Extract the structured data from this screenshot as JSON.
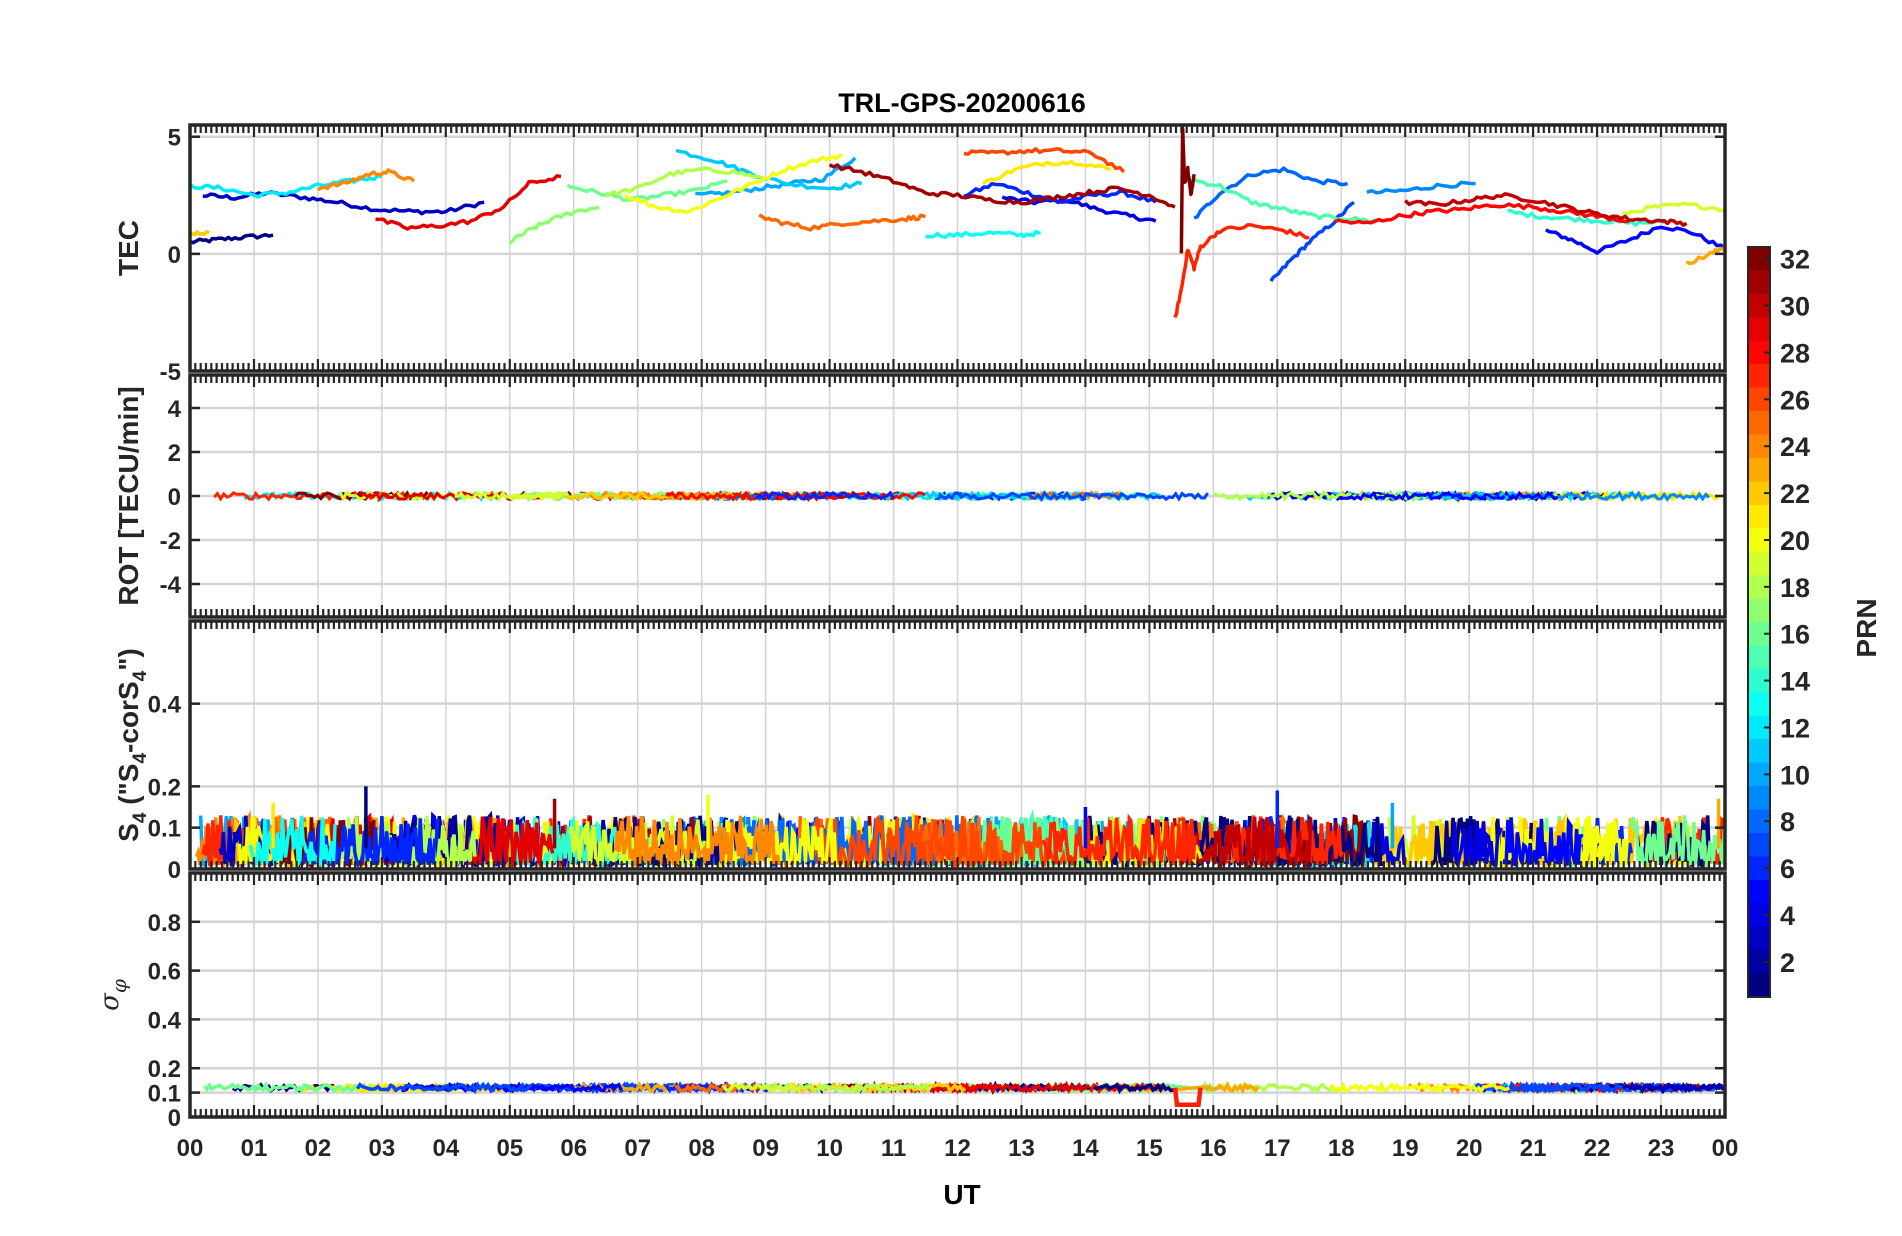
{
  "title": "TRL-GPS-20200616",
  "chart_data": [
    {
      "type": "line",
      "panel": "TEC",
      "ylabel": "TEC",
      "ylim": [
        -5,
        5.5
      ],
      "yticks": [
        "5",
        "0",
        "-5"
      ],
      "ytick_values": [
        5,
        0,
        -5
      ],
      "grid": true,
      "series": [
        {
          "prn": 1,
          "x": [
            0.0,
            0.4,
            0.8,
            1.3
          ],
          "y": [
            0.5,
            0.6,
            0.7,
            0.8
          ]
        },
        {
          "prn": 3,
          "x": [
            0.2,
            0.7,
            1.2,
            1.8,
            2.3,
            2.9,
            3.5,
            4.0,
            4.6
          ],
          "y": [
            2.5,
            2.4,
            2.6,
            2.4,
            2.2,
            1.9,
            1.8,
            1.8,
            2.2
          ]
        },
        {
          "prn": 4,
          "x": [
            12.7,
            13.2,
            13.7,
            14.2,
            14.7,
            15.1
          ],
          "y": [
            2.4,
            2.2,
            2.3,
            1.9,
            1.6,
            1.4
          ]
        },
        {
          "prn": 5,
          "x": [
            21.2,
            21.6,
            22.0,
            22.5,
            23.0,
            23.5,
            24.0
          ],
          "y": [
            1.0,
            0.6,
            0.1,
            0.6,
            1.2,
            0.9,
            0.2
          ]
        },
        {
          "prn": 6,
          "x": [
            12.1,
            12.6,
            13.1,
            13.6,
            14.1,
            14.6,
            15.1
          ],
          "y": [
            2.5,
            3.0,
            2.6,
            2.2,
            2.5,
            2.6,
            2.2
          ]
        },
        {
          "prn": 7,
          "x": [
            16.9,
            17.2,
            17.5,
            17.9,
            18.2
          ],
          "y": [
            -1.2,
            -0.3,
            0.5,
            1.4,
            2.2
          ]
        },
        {
          "prn": 8,
          "x": [
            15.7,
            16.1,
            16.6,
            17.1,
            17.6,
            18.1
          ],
          "y": [
            1.5,
            2.6,
            3.4,
            3.6,
            3.1,
            3.0
          ]
        },
        {
          "prn": 9,
          "x": [
            18.4,
            19.0,
            19.5,
            20.1
          ],
          "y": [
            2.6,
            2.7,
            2.9,
            3.0
          ]
        },
        {
          "prn": 10,
          "x": [
            7.9,
            8.4,
            8.9,
            9.4,
            9.9,
            10.4
          ],
          "y": [
            2.5,
            2.6,
            2.8,
            3.0,
            3.2,
            4.1
          ]
        },
        {
          "prn": 11,
          "x": [
            7.6,
            8.2,
            8.7,
            9.3,
            10.0,
            10.5
          ],
          "y": [
            4.4,
            4.0,
            3.5,
            3.0,
            2.8,
            3.0
          ]
        },
        {
          "prn": 12,
          "x": [
            0.0,
            0.5,
            1.0,
            1.5,
            2.0,
            2.5,
            3.0
          ],
          "y": [
            2.9,
            2.8,
            2.5,
            2.6,
            2.9,
            3.1,
            3.3
          ]
        },
        {
          "prn": 13,
          "x": [
            11.5,
            12.0,
            12.5,
            13.0,
            13.3
          ],
          "y": [
            0.8,
            0.8,
            0.9,
            0.8,
            0.9
          ]
        },
        {
          "prn": 14,
          "x": [
            20.6,
            21.1,
            21.6,
            22.1,
            22.6,
            23.1
          ],
          "y": [
            1.8,
            1.6,
            1.5,
            1.4,
            1.3,
            1.4
          ]
        },
        {
          "prn": 15,
          "x": [
            15.6,
            16.1,
            16.6,
            17.1,
            17.6,
            18.1,
            18.6
          ],
          "y": [
            3.2,
            2.9,
            2.2,
            1.9,
            1.6,
            1.5,
            1.4
          ]
        },
        {
          "prn": 16,
          "x": [
            5.9,
            6.4,
            6.9,
            7.4,
            7.9,
            8.4
          ],
          "y": [
            2.9,
            2.6,
            2.3,
            2.5,
            2.7,
            3.1
          ]
        },
        {
          "prn": 17,
          "x": [
            5.0,
            5.3,
            5.6,
            6.0,
            6.4
          ],
          "y": [
            0.5,
            1.0,
            1.4,
            1.8,
            2.0
          ]
        },
        {
          "prn": 18,
          "x": [
            6.5,
            7.0,
            7.5,
            8.0,
            8.5,
            9.0
          ],
          "y": [
            2.5,
            2.8,
            3.4,
            3.6,
            3.5,
            3.2
          ]
        },
        {
          "prn": 19,
          "x": [
            22.4,
            22.9,
            23.4,
            24.0
          ],
          "y": [
            1.7,
            2.0,
            2.1,
            1.9
          ]
        },
        {
          "prn": 20,
          "x": [
            6.8,
            7.3,
            7.8,
            8.3,
            8.8,
            9.3,
            9.8,
            10.2
          ],
          "y": [
            2.5,
            2.0,
            1.8,
            2.4,
            3.0,
            3.6,
            4.0,
            4.2
          ]
        },
        {
          "prn": 21,
          "x": [
            12.4,
            12.9,
            13.4,
            13.9,
            14.4
          ],
          "y": [
            3.0,
            3.6,
            3.9,
            3.9,
            3.6
          ]
        },
        {
          "prn": 22,
          "x": [
            0.0,
            0.3
          ],
          "y": [
            0.9,
            0.9
          ]
        },
        {
          "prn": 23,
          "x": [
            23.4,
            23.7,
            24.0
          ],
          "y": [
            -0.4,
            -0.1,
            0.3
          ]
        },
        {
          "prn": 24,
          "x": [
            2.0,
            2.4,
            2.8,
            3.1,
            3.5
          ],
          "y": [
            2.8,
            3.0,
            3.4,
            3.5,
            3.1
          ]
        },
        {
          "prn": 25,
          "x": [
            8.9,
            9.3,
            9.7,
            10.2,
            10.7,
            11.2,
            11.5
          ],
          "y": [
            1.6,
            1.3,
            1.1,
            1.3,
            1.4,
            1.5,
            1.6
          ]
        },
        {
          "prn": 26,
          "x": [
            12.1,
            12.6,
            13.1,
            13.6,
            14.1,
            14.6
          ],
          "y": [
            4.3,
            4.3,
            4.4,
            4.4,
            4.3,
            3.5
          ]
        },
        {
          "prn": 27,
          "x": [
            15.4,
            15.5,
            15.6,
            15.7,
            15.8,
            16.1,
            16.6,
            17.1,
            17.5
          ],
          "y": [
            -2.8,
            -1.5,
            0.2,
            -0.6,
            0.3,
            1.0,
            1.2,
            1.0,
            0.7
          ]
        },
        {
          "prn": 28,
          "x": [
            17.9,
            18.4,
            18.9,
            19.4,
            19.9,
            20.4,
            21.0,
            21.5,
            22.0,
            22.5
          ],
          "y": [
            1.4,
            1.3,
            1.6,
            1.8,
            1.9,
            2.1,
            2.0,
            1.8,
            1.6,
            1.4
          ]
        },
        {
          "prn": 29,
          "x": [
            2.9,
            3.4,
            3.9,
            4.4,
            4.9,
            5.3,
            5.8
          ],
          "y": [
            1.5,
            1.1,
            1.2,
            1.4,
            2.0,
            3.0,
            3.3
          ]
        },
        {
          "prn": 30,
          "x": [
            19.0,
            19.5,
            20.0,
            20.5,
            21.0,
            21.5,
            22.0,
            22.5,
            23.0,
            23.4
          ],
          "y": [
            2.2,
            2.1,
            2.3,
            2.5,
            2.3,
            2.0,
            1.7,
            1.5,
            1.4,
            1.3
          ]
        },
        {
          "prn": 31,
          "x": [
            10.0,
            10.5,
            11.0,
            11.5,
            12.0,
            12.5,
            13.0,
            13.5,
            14.0,
            14.5,
            15.0,
            15.4
          ],
          "y": [
            3.8,
            3.5,
            3.1,
            2.6,
            2.5,
            2.3,
            2.2,
            2.4,
            2.6,
            2.8,
            2.5,
            2.0
          ]
        },
        {
          "prn": 32,
          "x": [
            15.5,
            15.52,
            15.55,
            15.6,
            15.65,
            15.7
          ],
          "y": [
            0.0,
            5.4,
            3.0,
            3.6,
            2.5,
            3.4
          ]
        }
      ]
    },
    {
      "type": "line",
      "panel": "ROT",
      "ylabel": "ROT [TECU/min]",
      "ylim": [
        -5.5,
        5.5
      ],
      "yticks": [
        "4",
        "2",
        "0",
        "-2",
        "-4"
      ],
      "ytick_values": [
        4,
        2,
        0,
        -2,
        -4
      ],
      "grid": true,
      "baseline": 0,
      "amplitude": 0.15
    },
    {
      "type": "line",
      "panel": "S4",
      "ylabel": "S",
      "ylabel_sub": "4",
      "ylabel_rest": " (\"S",
      "ylabel_sub2": "4",
      "ylabel_mid": "-corS",
      "ylabel_sub3": "4",
      "ylabel_end": "\")",
      "ylim": [
        0,
        0.6
      ],
      "yticks": [
        "0.4",
        "0.2",
        "0.1",
        "0"
      ],
      "ytick_values": [
        0.4,
        0.2,
        0.1,
        0
      ],
      "grid": true,
      "typical_range": [
        0.01,
        0.13
      ],
      "peaks": [
        {
          "x": 2.75,
          "y": 0.2
        },
        {
          "x": 17.0,
          "y": 0.19
        },
        {
          "x": 8.1,
          "y": 0.18
        },
        {
          "x": 5.7,
          "y": 0.17
        },
        {
          "x": 23.9,
          "y": 0.17
        },
        {
          "x": 14.0,
          "y": 0.15
        },
        {
          "x": 18.8,
          "y": 0.16
        },
        {
          "x": 1.3,
          "y": 0.16
        }
      ]
    },
    {
      "type": "line",
      "panel": "SigmaPhi",
      "ylabel": "σ",
      "ylabel_sub": "φ",
      "ylim": [
        0,
        1.0
      ],
      "yticks": [
        "0.8",
        "0.6",
        "0.4",
        "0.2",
        "0.1",
        "0"
      ],
      "ytick_values": [
        0.8,
        0.6,
        0.4,
        0.2,
        0.1,
        0
      ],
      "grid": true,
      "baseline": 0.12,
      "dip": {
        "x": [
          15.4,
          15.8
        ],
        "y": 0.05
      }
    }
  ],
  "xaxis": {
    "label": "UT",
    "range": [
      0,
      24
    ],
    "ticks": [
      "00",
      "01",
      "02",
      "03",
      "04",
      "05",
      "06",
      "07",
      "08",
      "09",
      "10",
      "11",
      "12",
      "13",
      "14",
      "15",
      "16",
      "17",
      "18",
      "19",
      "20",
      "21",
      "22",
      "23",
      "00"
    ]
  },
  "colorbar": {
    "label": "PRN",
    "range": [
      1,
      32
    ],
    "ticks": [
      "32",
      "30",
      "28",
      "26",
      "24",
      "22",
      "20",
      "18",
      "16",
      "14",
      "12",
      "10",
      "8",
      "6",
      "4",
      "2"
    ],
    "tick_values": [
      32,
      30,
      28,
      26,
      24,
      22,
      20,
      18,
      16,
      14,
      12,
      10,
      8,
      6,
      4,
      2
    ],
    "colormap": "jet"
  }
}
